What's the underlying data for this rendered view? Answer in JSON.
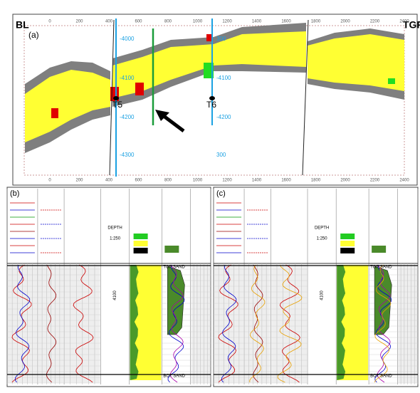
{
  "panel_a": {
    "label": "(a)",
    "left_label": "BL",
    "right_label": "TGR",
    "top_axis": [
      "0",
      "200",
      "400",
      "600",
      "800",
      "1000",
      "1200",
      "1400",
      "1600",
      "1800",
      "2000",
      "2200",
      "2400"
    ],
    "bottom_axis": [
      "0",
      "200",
      "400",
      "600",
      "800",
      "1000",
      "1200",
      "1400",
      "1600",
      "1800",
      "2000",
      "2200",
      "2400"
    ],
    "wells": [
      {
        "name": "T5",
        "depths": [
          "-4000",
          "-4100",
          "-4200",
          "-4300"
        ]
      },
      {
        "name": "T6",
        "depths": [
          "300",
          "-4100",
          "-4200",
          "300"
        ]
      }
    ]
  },
  "panel_b": {
    "label": "(b)",
    "depth_header": "DEPTH",
    "scale": "1:250",
    "depth_mark": "4100",
    "markers": [
      "TOP SAND",
      "BOT SAND"
    ]
  },
  "panel_c": {
    "label": "(c)",
    "depth_header": "DEPTH",
    "scale": "1:250",
    "depth_mark": "4100",
    "markers": [
      "TOP SAND",
      "BOT SAND"
    ]
  }
}
